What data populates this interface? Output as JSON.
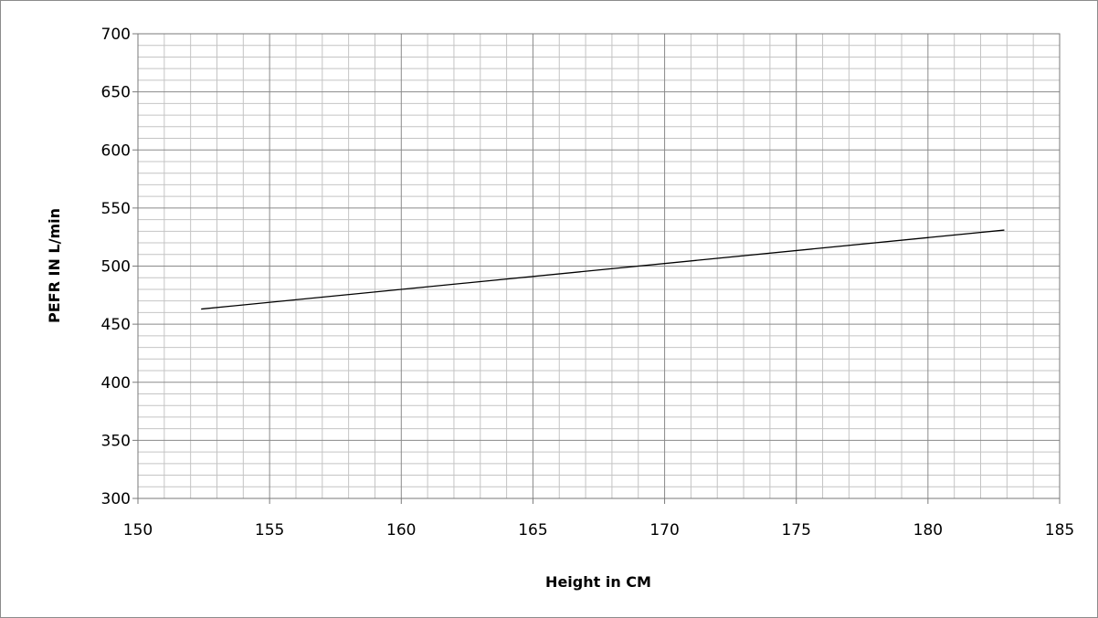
{
  "chart_data": {
    "type": "line",
    "title": "",
    "xlabel": "Height in CM",
    "ylabel": "PEFR IN L/min",
    "xlim": [
      150,
      185
    ],
    "ylim": [
      300,
      700
    ],
    "x_ticks": [
      150,
      155,
      160,
      165,
      170,
      175,
      180,
      185
    ],
    "y_ticks": [
      300,
      350,
      400,
      450,
      500,
      550,
      600,
      650,
      700
    ],
    "x_minor_step": 1,
    "y_minor_step": 10,
    "grid": true,
    "legend": "none",
    "series": [
      {
        "x": [
          152.4,
          182.9
        ],
        "y": [
          463,
          531
        ],
        "color": "#000000"
      }
    ]
  }
}
